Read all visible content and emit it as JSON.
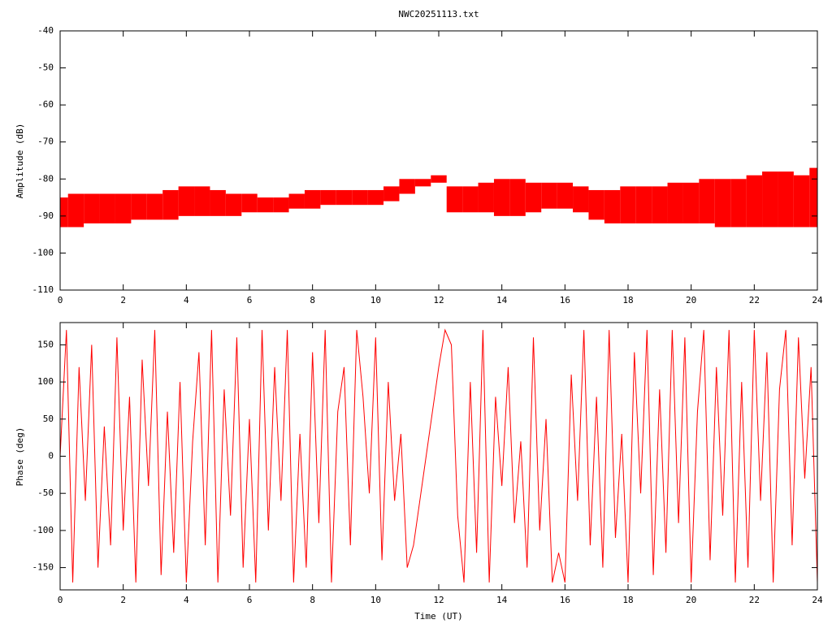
{
  "chart_data": [
    {
      "type": "band",
      "title": "NWC20251113.txt",
      "ylabel": "Amplitude (dB)",
      "color": "#ff0000",
      "x": [
        0,
        0.5,
        1,
        1.5,
        2,
        2.5,
        3,
        3.5,
        4,
        4.5,
        5,
        5.5,
        6,
        6.5,
        7,
        7.5,
        8,
        8.5,
        9,
        9.5,
        10,
        10.5,
        11,
        11.5,
        12,
        12.5,
        13,
        13.5,
        14,
        14.5,
        15,
        15.5,
        16,
        16.5,
        17,
        17.5,
        18,
        18.5,
        19,
        19.5,
        20,
        20.5,
        21,
        21.5,
        22,
        22.5,
        23,
        23.5,
        24
      ],
      "series": [
        {
          "values": [
            -93,
            -93,
            -92,
            -92,
            -92,
            -91,
            -91,
            -91,
            -90,
            -90,
            -90,
            -90,
            -89,
            -89,
            -89,
            -88,
            -88,
            -87,
            -87,
            -87,
            -87,
            -86,
            -84,
            -82,
            -81,
            -89,
            -89,
            -89,
            -90,
            -90,
            -89,
            -88,
            -88,
            -89,
            -91,
            -92,
            -92,
            -92,
            -92,
            -92,
            -92,
            -92,
            -93,
            -93,
            -93,
            -93,
            -93,
            -93,
            -93
          ]
        },
        {
          "values": [
            -85,
            -84,
            -84,
            -84,
            -84,
            -84,
            -84,
            -83,
            -82,
            -82,
            -83,
            -84,
            -84,
            -85,
            -85,
            -84,
            -83,
            -83,
            -83,
            -83,
            -83,
            -82,
            -80,
            -80,
            -79,
            -82,
            -82,
            -81,
            -80,
            -80,
            -81,
            -81,
            -81,
            -82,
            -83,
            -83,
            -82,
            -82,
            -82,
            -81,
            -81,
            -80,
            -80,
            -80,
            -79,
            -78,
            -78,
            -79,
            -77
          ]
        }
      ],
      "xlim": [
        0,
        24
      ],
      "xticks": [
        0,
        2,
        4,
        6,
        8,
        10,
        12,
        14,
        16,
        18,
        20,
        22,
        24
      ],
      "ylim": [
        -110,
        -40
      ],
      "yticks": [
        -110,
        -100,
        -90,
        -80,
        -70,
        -60,
        -50,
        -40
      ]
    },
    {
      "type": "line",
      "ylabel": "Phase (deg)",
      "xlabel": "Time (UT)",
      "color": "#ff0000",
      "x": [
        0,
        0.2,
        0.4,
        0.6,
        0.8,
        1,
        1.2,
        1.4,
        1.6,
        1.8,
        2,
        2.2,
        2.4,
        2.6,
        2.8,
        3,
        3.2,
        3.4,
        3.6,
        3.8,
        4,
        4.2,
        4.4,
        4.6,
        4.8,
        5,
        5.2,
        5.4,
        5.6,
        5.8,
        6,
        6.2,
        6.4,
        6.6,
        6.8,
        7,
        7.2,
        7.4,
        7.6,
        7.8,
        8,
        8.2,
        8.4,
        8.6,
        8.8,
        9,
        9.2,
        9.4,
        9.6,
        9.8,
        10,
        10.2,
        10.4,
        10.6,
        10.8,
        11,
        11.2,
        11.4,
        11.6,
        11.8,
        12,
        12.2,
        12.4,
        12.6,
        12.8,
        13,
        13.2,
        13.4,
        13.6,
        13.8,
        14,
        14.2,
        14.4,
        14.6,
        14.8,
        15,
        15.2,
        15.4,
        15.6,
        15.8,
        16,
        16.2,
        16.4,
        16.6,
        16.8,
        17,
        17.2,
        17.4,
        17.6,
        17.8,
        18,
        18.2,
        18.4,
        18.6,
        18.8,
        19,
        19.2,
        19.4,
        19.6,
        19.8,
        20,
        20.2,
        20.4,
        20.6,
        20.8,
        21,
        21.2,
        21.4,
        21.6,
        21.8,
        22,
        22.2,
        22.4,
        22.6,
        22.8,
        23,
        23.2,
        23.4,
        23.6,
        23.8,
        24
      ],
      "values": [
        0,
        170,
        -170,
        120,
        -60,
        150,
        -150,
        40,
        -120,
        160,
        -100,
        80,
        -170,
        130,
        -40,
        170,
        -160,
        60,
        -130,
        100,
        -170,
        20,
        140,
        -120,
        170,
        -170,
        90,
        -80,
        160,
        -150,
        50,
        -170,
        170,
        -100,
        120,
        -60,
        170,
        -170,
        30,
        -150,
        140,
        -90,
        170,
        -170,
        60,
        120,
        -120,
        170,
        80,
        -50,
        160,
        -140,
        100,
        -60,
        30,
        -150,
        -120,
        -60,
        0,
        60,
        120,
        170,
        150,
        -80,
        -170,
        100,
        -130,
        170,
        -170,
        80,
        -40,
        120,
        -90,
        20,
        -150,
        160,
        -100,
        50,
        -170,
        -130,
        -170,
        110,
        -60,
        170,
        -120,
        80,
        -150,
        170,
        -110,
        30,
        -170,
        140,
        -50,
        170,
        -160,
        90,
        -130,
        170,
        -90,
        160,
        -170,
        60,
        170,
        -140,
        120,
        -80,
        170,
        -170,
        100,
        -150,
        170,
        -60,
        140,
        -170,
        90,
        170,
        -120,
        160,
        -30,
        120,
        -170
      ],
      "xlim": [
        0,
        24
      ],
      "xticks": [
        0,
        2,
        4,
        6,
        8,
        10,
        12,
        14,
        16,
        18,
        20,
        22,
        24
      ],
      "ylim": [
        -180,
        180
      ],
      "yticks": [
        -150,
        -100,
        -50,
        0,
        50,
        100,
        150
      ]
    }
  ]
}
